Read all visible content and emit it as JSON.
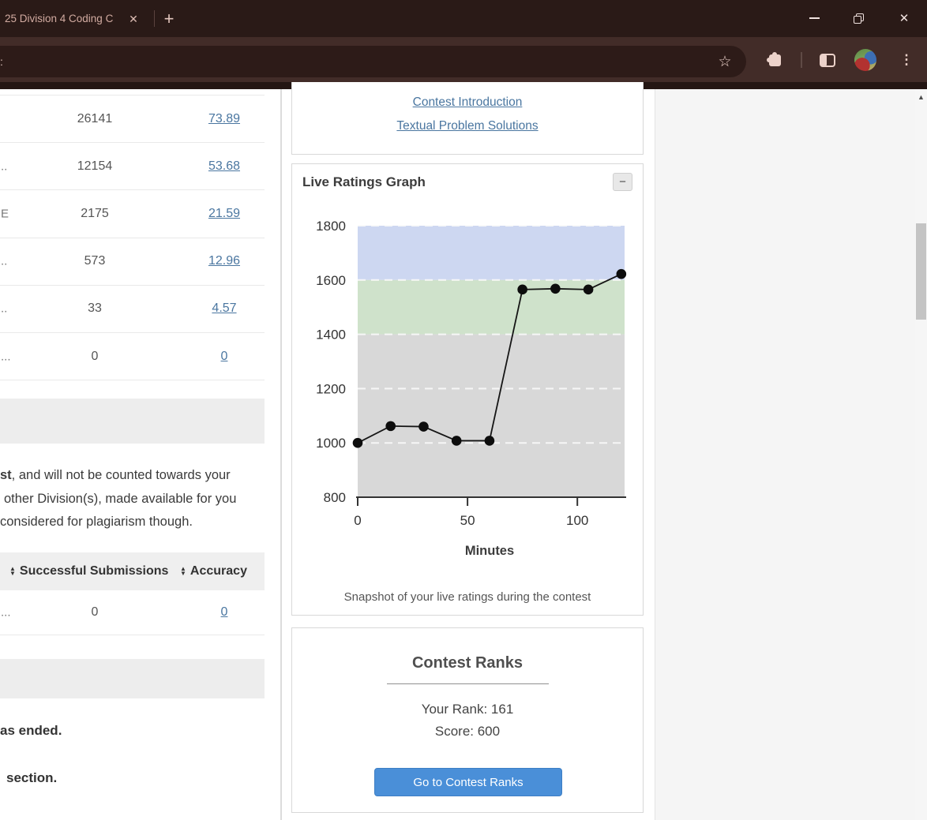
{
  "browser": {
    "tab_title": "25 Division 4 Coding C",
    "tab_close": "✕",
    "new_tab": "+",
    "url_fragment": ":",
    "star_icon": "☆",
    "kebab_icon": "⋮",
    "window_close": "✕",
    "scroll_up_arrow": "▲",
    "accent_colors": {
      "tabbar": "#2a1a17",
      "toolbar": "#422c28",
      "omnibox": "#2d1b18"
    }
  },
  "left_panel": {
    "table1": {
      "rows": [
        {
          "label": "",
          "submissions": "26141",
          "accuracy": "73.89"
        },
        {
          "label": "..",
          "submissions": "12154",
          "accuracy": "53.68"
        },
        {
          "label": "E",
          "submissions": "2175",
          "accuracy": "21.59"
        },
        {
          "label": "..",
          "submissions": "573",
          "accuracy": "12.96"
        },
        {
          "label": "..",
          "submissions": "33",
          "accuracy": "4.57"
        },
        {
          "label": "...",
          "submissions": "0",
          "accuracy": "0"
        }
      ]
    },
    "paragraph": {
      "bold_lead": "st",
      "line1_rest": ", and will not be counted towards your",
      "line2": "other Division(s), made available for you",
      "line3": "considered for plagiarism though."
    },
    "table2": {
      "sort_up": "▲",
      "sort_down": "▼",
      "header1": "Successful Submissions",
      "header2": "Accuracy",
      "row": {
        "label": "...",
        "submissions": "0",
        "accuracy": "0"
      }
    },
    "ended_text": "as ended.",
    "section_text": "section."
  },
  "right_panel": {
    "links": {
      "link1": "Contest Introduction",
      "link2": "Textual Problem Solutions"
    },
    "ratings_card": {
      "title": "Live Ratings Graph",
      "collapse_label": "−",
      "caption": "Snapshot of your live ratings during the contest"
    },
    "ranks_card": {
      "title": "Contest Ranks",
      "rank_label": "Your Rank: 161",
      "score_label": "Score: 600",
      "button_label": "Go to Contest Ranks"
    }
  },
  "chart_data": {
    "type": "line",
    "title": "Live Ratings Graph",
    "xlabel": "Minutes",
    "ylabel": "",
    "x": [
      0,
      15,
      30,
      45,
      60,
      75,
      90,
      105,
      120
    ],
    "series": [
      {
        "name": "live_rating",
        "values": [
          1000,
          1062,
          1060,
          1008,
          1008,
          1565,
          1568,
          1565,
          1622
        ]
      }
    ],
    "x_ticks": [
      0,
      50,
      100
    ],
    "y_ticks": [
      800,
      1000,
      1200,
      1400,
      1600,
      1800
    ],
    "xlim": [
      0,
      121.5
    ],
    "ylim": [
      800,
      1800
    ],
    "bands": [
      {
        "from": 1600,
        "to": 1800,
        "color": "#cdd7f1"
      },
      {
        "from": 1400,
        "to": 1600,
        "color": "#cfe2cb"
      },
      {
        "from": 800,
        "to": 1400,
        "color": "#d8d8d8"
      }
    ],
    "grid": "dashed-horizontal",
    "legend_position": "none",
    "line_color": "#151515",
    "marker_color": "#0d0d0d"
  }
}
